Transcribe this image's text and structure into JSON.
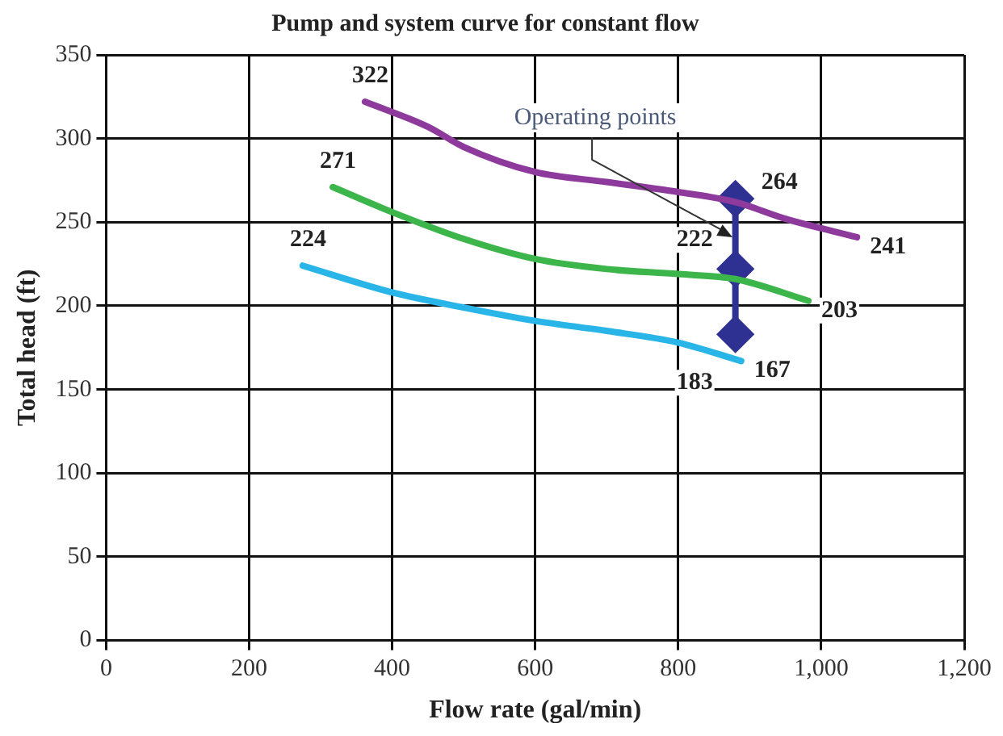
{
  "chart_data": {
    "type": "line",
    "title": "Pump and system curve for constant flow",
    "xlabel": "Flow rate (gal/min)",
    "ylabel": "Total head (ft)",
    "xlim": [
      0,
      1200
    ],
    "xticks": [
      0,
      200,
      400,
      600,
      800,
      {
        "value": 1000,
        "label": "1,000"
      },
      {
        "value": 1200,
        "label": "1,200"
      }
    ],
    "ylim": [
      0,
      350
    ],
    "yticks": [
      0,
      50,
      100,
      150,
      200,
      250,
      300,
      350
    ],
    "grid": true,
    "legend": false,
    "series": [
      {
        "color": "#8e3a9d",
        "marker": "none",
        "x": [
          362,
          450,
          500,
          600,
          700,
          800,
          880,
          950,
          1050
        ],
        "values": [
          322,
          307,
          295,
          280,
          274,
          268,
          262,
          252,
          241
        ],
        "value_labels": [
          "322",
          null,
          null,
          null,
          null,
          null,
          null,
          null,
          "241"
        ]
      },
      {
        "color": "#3cb54a",
        "marker": "none",
        "x": [
          317,
          400,
          500,
          600,
          700,
          800,
          880,
          982
        ],
        "values": [
          271,
          256,
          240,
          228,
          222,
          219,
          216,
          203
        ],
        "value_labels": [
          "271",
          null,
          null,
          null,
          null,
          null,
          null,
          "203"
        ]
      },
      {
        "color": "#29b5e8",
        "marker": "none",
        "x": [
          275,
          400,
          500,
          600,
          700,
          800,
          888
        ],
        "values": [
          224,
          208,
          199,
          191,
          185,
          178,
          167
        ],
        "value_labels": [
          "224",
          null,
          null,
          null,
          null,
          null,
          "167"
        ]
      },
      {
        "color": "#2e3192",
        "marker": "diamond",
        "x": [
          880,
          880,
          880
        ],
        "values": [
          264,
          222,
          183
        ],
        "value_labels": [
          "264",
          "222",
          "183"
        ]
      }
    ],
    "annotations": [
      {
        "text": "Operating points",
        "x": 876,
        "y": 241
      }
    ]
  }
}
